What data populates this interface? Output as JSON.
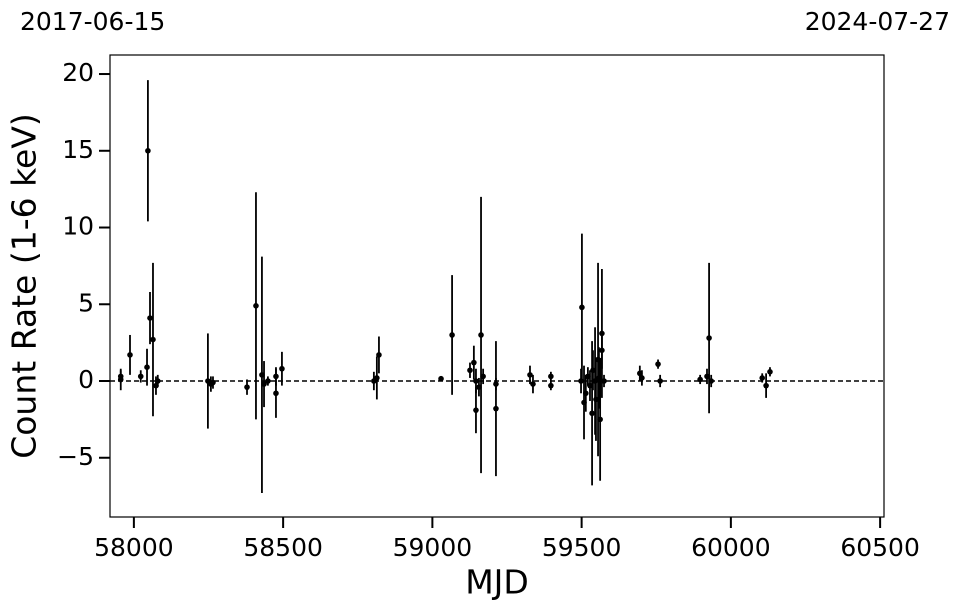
{
  "chart_data": {
    "type": "errorbar",
    "top_left_label": "2017-06-15",
    "top_right_label": "2024-07-27",
    "xlabel": "MJD",
    "ylabel": "Count Rate (1-6 keV)",
    "color": "#000000",
    "hline": 0,
    "xlim": [
      57920,
      60513
    ],
    "ylim": [
      -8.86,
      21.24
    ],
    "xticks": [
      58000,
      58500,
      59000,
      59500,
      60000,
      60500
    ],
    "yticks": [
      {
        "value": -5,
        "label": "−5"
      },
      0,
      5,
      10,
      15,
      20
    ],
    "x": [
      57956,
      57956,
      57987,
      58023,
      58044,
      58047,
      58054,
      58064,
      58074,
      58080,
      58248,
      58258,
      58265,
      58379,
      58409,
      58429,
      58436,
      58449,
      58476,
      58476,
      58496,
      58804,
      58814,
      58821,
      59029,
      59066,
      59126,
      59139,
      59146,
      59146,
      59156,
      59163,
      59170,
      59213,
      59213,
      59327,
      59337,
      59397,
      59397,
      59498,
      59501,
      59508,
      59514,
      59521,
      59528,
      59535,
      59538,
      59545,
      59548,
      59555,
      59558,
      59562,
      59568,
      59568,
      59575,
      59695,
      59702,
      59756,
      59763,
      59897,
      59920,
      59927,
      59934,
      60105,
      60118,
      60131
    ],
    "y": [
      0.1,
      0.3,
      1.7,
      0.3,
      0.9,
      15.0,
      4.1,
      2.7,
      -0.3,
      0.0,
      0.0,
      -0.2,
      -0.1,
      -0.4,
      4.9,
      0.4,
      -0.2,
      0.0,
      -0.8,
      0.3,
      0.8,
      0.0,
      0.2,
      1.7,
      0.15,
      3.0,
      0.7,
      1.2,
      -1.9,
      0.0,
      -0.4,
      3.0,
      0.3,
      -0.2,
      -1.8,
      0.4,
      -0.2,
      0.3,
      -0.3,
      0.0,
      4.8,
      -1.4,
      -0.8,
      0.3,
      -0.3,
      -2.1,
      0.7,
      0.0,
      -1.2,
      1.4,
      0.2,
      -2.5,
      2.0,
      3.1,
      0.0,
      0.5,
      0.2,
      1.1,
      0.0,
      0.1,
      0.3,
      2.8,
      0.0,
      0.2,
      -0.3,
      0.6
    ],
    "yerr": [
      0.7,
      0.4,
      1.3,
      0.4,
      1.2,
      4.6,
      1.7,
      5.0,
      0.6,
      0.4,
      3.1,
      0.5,
      0.4,
      0.5,
      7.4,
      7.7,
      1.5,
      0.3,
      1.6,
      0.6,
      1.1,
      0.6,
      1.4,
      1.2,
      0.15,
      3.9,
      0.5,
      1.1,
      1.5,
      0.8,
      0.6,
      9.0,
      0.5,
      0.4,
      4.4,
      0.6,
      0.6,
      0.3,
      0.3,
      0.8,
      4.8,
      2.4,
      1.2,
      0.6,
      1.0,
      4.7,
      1.3,
      3.5,
      2.7,
      6.3,
      2.0,
      4.0,
      1.2,
      4.2,
      0.4,
      0.5,
      0.5,
      0.3,
      0.4,
      0.3,
      0.5,
      4.9,
      0.4,
      0.3,
      0.8,
      0.3
    ]
  }
}
